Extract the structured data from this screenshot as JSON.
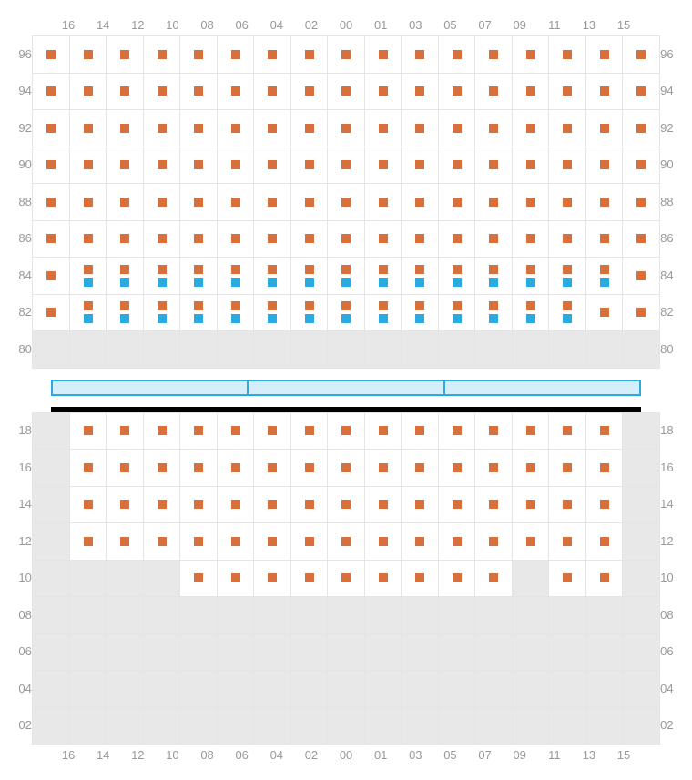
{
  "columns": [
    "16",
    "14",
    "12",
    "10",
    "08",
    "06",
    "04",
    "02",
    "00",
    "01",
    "03",
    "05",
    "07",
    "09",
    "11",
    "13",
    "15"
  ],
  "top_rows": [
    "96",
    "94",
    "92",
    "90",
    "88",
    "86",
    "84",
    "82",
    "80"
  ],
  "bottom_rows": [
    "18",
    "16",
    "14",
    "12",
    "10",
    "08",
    "06",
    "04",
    "02"
  ],
  "cell_size": 40.5,
  "colors": {
    "orange": "#d8703c",
    "blue": "#29abe2",
    "grid_line": "#e5e5e5",
    "empty_bg": "#e8e8e8",
    "label": "#999999"
  },
  "marker_size": 10,
  "top_grid": [
    [
      "o",
      "o",
      "o",
      "o",
      "o",
      "o",
      "o",
      "o",
      "o",
      "o",
      "o",
      "o",
      "o",
      "o",
      "o",
      "o",
      "o"
    ],
    [
      "o",
      "o",
      "o",
      "o",
      "o",
      "o",
      "o",
      "o",
      "o",
      "o",
      "o",
      "o",
      "o",
      "o",
      "o",
      "o",
      "o"
    ],
    [
      "o",
      "o",
      "o",
      "o",
      "o",
      "o",
      "o",
      "o",
      "o",
      "o",
      "o",
      "o",
      "o",
      "o",
      "o",
      "o",
      "o"
    ],
    [
      "o",
      "o",
      "o",
      "o",
      "o",
      "o",
      "o",
      "o",
      "o",
      "o",
      "o",
      "o",
      "o",
      "o",
      "o",
      "o",
      "o"
    ],
    [
      "o",
      "o",
      "o",
      "o",
      "o",
      "o",
      "o",
      "o",
      "o",
      "o",
      "o",
      "o",
      "o",
      "o",
      "o",
      "o",
      "o"
    ],
    [
      "o",
      "o",
      "o",
      "o",
      "o",
      "o",
      "o",
      "o",
      "o",
      "o",
      "o",
      "o",
      "o",
      "o",
      "o",
      "o",
      "o"
    ],
    [
      "o",
      "ob",
      "ob",
      "ob",
      "ob",
      "ob",
      "ob",
      "ob",
      "ob",
      "ob",
      "ob",
      "ob",
      "ob",
      "ob",
      "ob",
      "ob",
      "o"
    ],
    [
      "o",
      "ob",
      "ob",
      "ob",
      "ob",
      "ob",
      "ob",
      "ob",
      "ob",
      "ob",
      "ob",
      "ob",
      "ob",
      "ob",
      "ob",
      "o",
      "o"
    ],
    [
      "e",
      "e",
      "e",
      "e",
      "e",
      "e",
      "e",
      "e",
      "e",
      "e",
      "e",
      "e",
      "e",
      "e",
      "e",
      "e",
      "e"
    ]
  ],
  "bottom_grid": [
    [
      "e",
      "o",
      "o",
      "o",
      "o",
      "o",
      "o",
      "o",
      "o",
      "o",
      "o",
      "o",
      "o",
      "o",
      "o",
      "o",
      "e"
    ],
    [
      "e",
      "o",
      "o",
      "o",
      "o",
      "o",
      "o",
      "o",
      "o",
      "o",
      "o",
      "o",
      "o",
      "o",
      "o",
      "o",
      "e"
    ],
    [
      "e",
      "o",
      "o",
      "o",
      "o",
      "o",
      "o",
      "o",
      "o",
      "o",
      "o",
      "o",
      "o",
      "o",
      "o",
      "o",
      "e"
    ],
    [
      "e",
      "o",
      "o",
      "o",
      "o",
      "o",
      "o",
      "o",
      "o",
      "o",
      "o",
      "o",
      "o",
      "o",
      "o",
      "o",
      "e"
    ],
    [
      "e",
      "e",
      "e",
      "e",
      "o",
      "o",
      "o",
      "o",
      "o",
      "o",
      "o",
      "o",
      "o",
      "e",
      "o",
      "o",
      "e"
    ],
    [
      "e",
      "e",
      "e",
      "e",
      "e",
      "e",
      "e",
      "e",
      "e",
      "e",
      "e",
      "e",
      "e",
      "e",
      "e",
      "e",
      "e"
    ],
    [
      "e",
      "e",
      "e",
      "e",
      "e",
      "e",
      "e",
      "e",
      "e",
      "e",
      "e",
      "e",
      "e",
      "e",
      "e",
      "e",
      "e"
    ],
    [
      "e",
      "e",
      "e",
      "e",
      "e",
      "e",
      "e",
      "e",
      "e",
      "e",
      "e",
      "e",
      "e",
      "e",
      "e",
      "e",
      "e"
    ],
    [
      "e",
      "e",
      "e",
      "e",
      "e",
      "e",
      "e",
      "e",
      "e",
      "e",
      "e",
      "e",
      "e",
      "e",
      "e",
      "e",
      "e"
    ]
  ],
  "divider_segments": 3
}
